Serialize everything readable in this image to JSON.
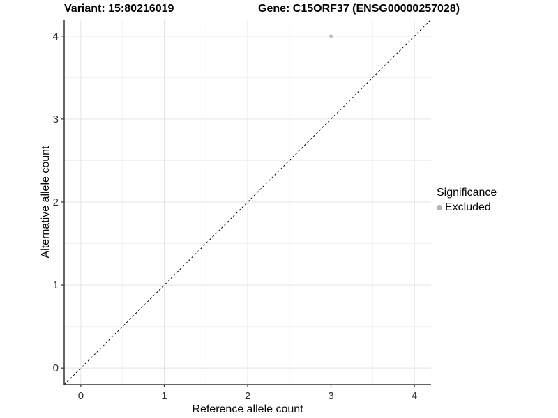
{
  "chart_data": {
    "type": "scatter",
    "title_left": "Variant: 15:80216019",
    "title_right": "Gene: C15ORF37 (ENSG00000257028)",
    "xlabel": "Reference allele count",
    "ylabel": "Alternative allele count",
    "xlim": [
      -0.2,
      4.2
    ],
    "ylim": [
      -0.2,
      4.2
    ],
    "x_ticks": [
      0,
      1,
      2,
      3,
      4
    ],
    "y_ticks": [
      0,
      1,
      2,
      3,
      4
    ],
    "minor_ticks": [
      0.5,
      1.5,
      2.5,
      3.5
    ],
    "grid": true,
    "points": [
      {
        "x": 3,
        "y": 4,
        "series": "Excluded"
      }
    ],
    "reference_line": {
      "type": "abline",
      "slope": 1,
      "intercept": 0,
      "style": "dashed"
    },
    "legend": {
      "position": "right",
      "title": "Significance",
      "items": [
        {
          "label": "Excluded",
          "color": "#b3b3b3"
        }
      ]
    },
    "colors": {
      "point": "#bebebe",
      "axis_line": "#333333",
      "tick_label": "#303030",
      "axis_title": "#000000",
      "grid_major": "#e3e3e3",
      "grid_minor": "#f1f1f1",
      "reference_line": "#000000",
      "background": "#ffffff"
    }
  }
}
